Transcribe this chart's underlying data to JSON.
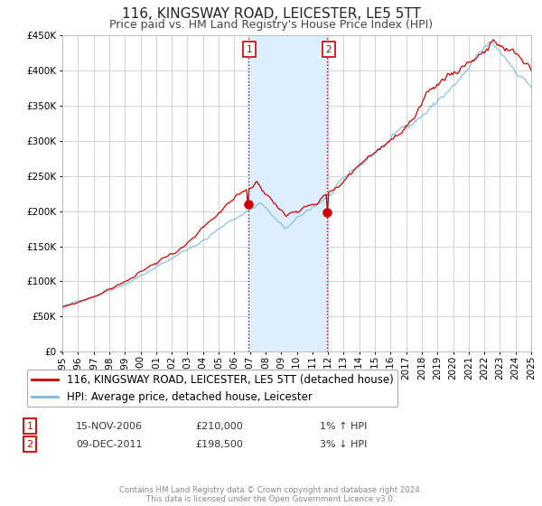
{
  "title": "116, KINGSWAY ROAD, LEICESTER, LE5 5TT",
  "subtitle": "Price paid vs. HM Land Registry's House Price Index (HPI)",
  "legend_line1": "116, KINGSWAY ROAD, LEICESTER, LE5 5TT (detached house)",
  "legend_line2": "HPI: Average price, detached house, Leicester",
  "annotation1_date": "15-NOV-2006",
  "annotation1_price": "£210,000",
  "annotation1_hpi": "1% ↑ HPI",
  "annotation2_date": "09-DEC-2011",
  "annotation2_price": "£198,500",
  "annotation2_hpi": "3% ↓ HPI",
  "sale1_x": 2006.88,
  "sale1_y": 210000,
  "sale2_x": 2011.94,
  "sale2_y": 198500,
  "shade_x1": 2006.88,
  "shade_x2": 2011.94,
  "ylim": [
    0,
    450000
  ],
  "xlim": [
    1995,
    2025
  ],
  "yticks": [
    0,
    50000,
    100000,
    150000,
    200000,
    250000,
    300000,
    350000,
    400000,
    450000
  ],
  "xticks": [
    1995,
    1996,
    1997,
    1998,
    1999,
    2000,
    2001,
    2002,
    2003,
    2004,
    2005,
    2006,
    2007,
    2008,
    2009,
    2010,
    2011,
    2012,
    2013,
    2014,
    2015,
    2016,
    2017,
    2018,
    2019,
    2020,
    2021,
    2022,
    2023,
    2024,
    2025
  ],
  "hpi_color": "#7ab8d9",
  "price_color": "#cc0000",
  "shade_color": "#ddeeff",
  "vline_color": "#cc0000",
  "grid_color": "#cccccc",
  "bg_color": "#ffffff",
  "footer": "Contains HM Land Registry data © Crown copyright and database right 2024.\nThis data is licensed under the Open Government Licence v3.0.",
  "title_fontsize": 11,
  "subtitle_fontsize": 9,
  "tick_fontsize": 7.5,
  "legend_fontsize": 8.5
}
